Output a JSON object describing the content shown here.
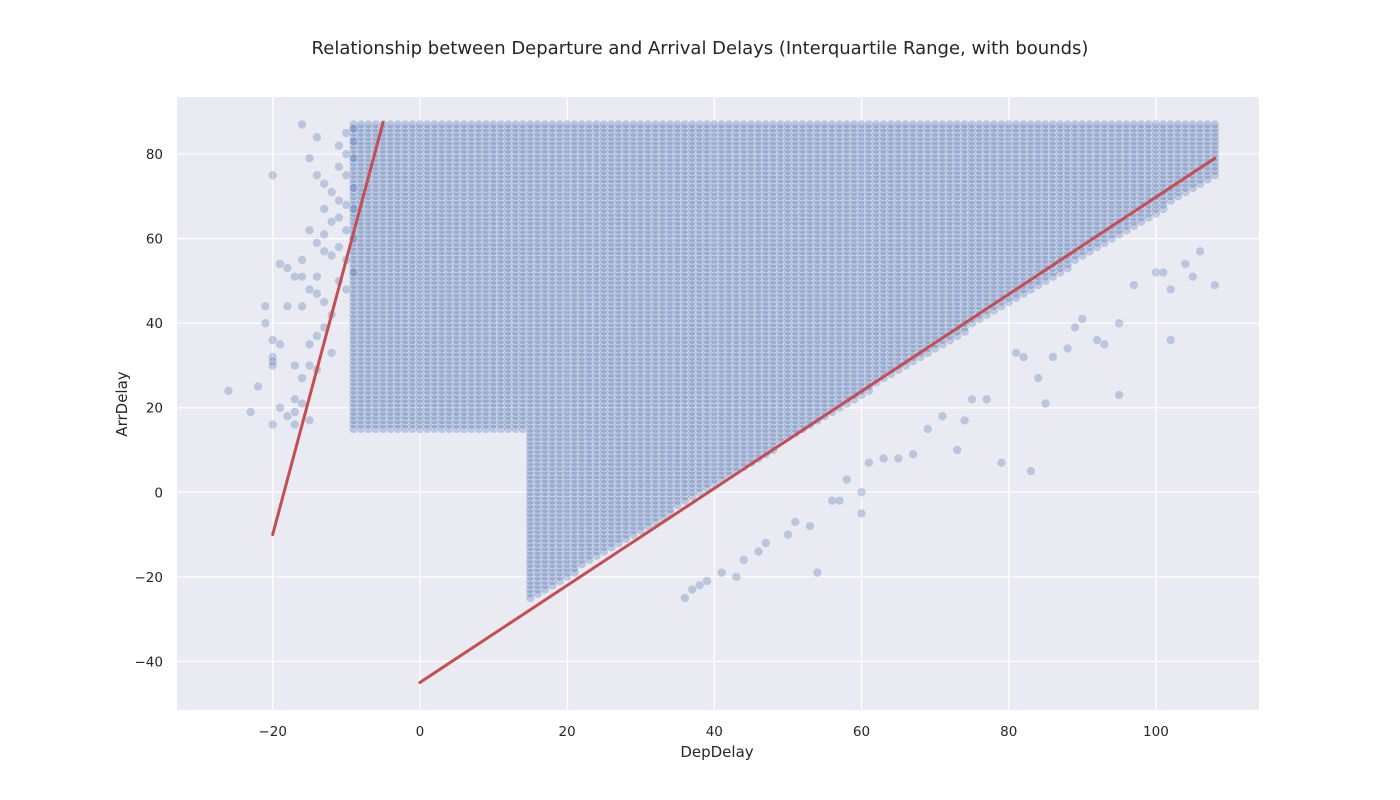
{
  "chart_data": {
    "type": "scatter",
    "title": "Relationship between Departure and Arrival Delays (Interquartile Range, with bounds)",
    "xlabel": "DepDelay",
    "ylabel": "ArrDelay",
    "xlim": [
      -33,
      114
    ],
    "ylim": [
      -51.5,
      93.5
    ],
    "x_ticks": [
      -20,
      0,
      20,
      40,
      60,
      80,
      100
    ],
    "y_ticks": [
      -40,
      -20,
      0,
      20,
      40,
      60,
      80
    ],
    "x_tick_labels": [
      "−20",
      "0",
      "20",
      "40",
      "60",
      "80",
      "100"
    ],
    "y_tick_labels": [
      "−40",
      "−20",
      "0",
      "20",
      "40",
      "60",
      "80"
    ],
    "grid": true,
    "legend": "none",
    "style": {
      "background": "#EAEAF2",
      "grid_color": "#FFFFFF",
      "point_color": "#4C72B0",
      "point_alpha": 0.3,
      "line_color": "#C44E52"
    },
    "series": [
      {
        "type": "scatter",
        "points": [
          [
            -26,
            24
          ],
          [
            -23,
            19
          ],
          [
            -22,
            25
          ],
          [
            -21,
            44
          ],
          [
            -21,
            40
          ],
          [
            -20,
            75
          ],
          [
            -20,
            36
          ],
          [
            -20,
            32
          ],
          [
            -20,
            31
          ],
          [
            -20,
            30
          ],
          [
            -20,
            16
          ],
          [
            -19,
            54
          ],
          [
            -19,
            35
          ],
          [
            -19,
            20
          ],
          [
            -18,
            53
          ],
          [
            -18,
            44
          ],
          [
            -18,
            18
          ],
          [
            -17,
            51
          ],
          [
            -17,
            30
          ],
          [
            -17,
            22
          ],
          [
            -17,
            19
          ],
          [
            -17,
            16
          ],
          [
            -16,
            87
          ],
          [
            -16,
            55
          ],
          [
            -16,
            51
          ],
          [
            -16,
            44
          ],
          [
            -16,
            27
          ],
          [
            -16,
            21
          ],
          [
            -15,
            79
          ],
          [
            -15,
            62
          ],
          [
            -15,
            48
          ],
          [
            -15,
            35
          ],
          [
            -15,
            30
          ],
          [
            -15,
            17
          ],
          [
            -14,
            84
          ],
          [
            -14,
            75
          ],
          [
            -14,
            59
          ],
          [
            -14,
            51
          ],
          [
            -14,
            47
          ],
          [
            -14,
            37
          ],
          [
            -14,
            29
          ],
          [
            -13,
            73
          ],
          [
            -13,
            67
          ],
          [
            -13,
            61
          ],
          [
            -13,
            57
          ],
          [
            -13,
            45
          ],
          [
            -13,
            39
          ],
          [
            -12,
            71
          ],
          [
            -12,
            64
          ],
          [
            -12,
            56
          ],
          [
            -12,
            42
          ],
          [
            -12,
            33
          ],
          [
            -11,
            82
          ],
          [
            -11,
            77
          ],
          [
            -11,
            69
          ],
          [
            -11,
            65
          ],
          [
            -11,
            58
          ],
          [
            -11,
            50
          ],
          [
            -10,
            85
          ],
          [
            -10,
            80
          ],
          [
            -10,
            75
          ],
          [
            -10,
            68
          ],
          [
            -10,
            62
          ],
          [
            -10,
            55
          ],
          [
            -10,
            48
          ],
          [
            -9,
            86
          ],
          [
            -9,
            83
          ],
          [
            -9,
            79
          ],
          [
            -9,
            72
          ],
          [
            -9,
            67
          ],
          [
            -9,
            60
          ],
          [
            -9,
            52
          ],
          [
            36,
            -25
          ],
          [
            37,
            -23
          ],
          [
            38,
            -22
          ],
          [
            39,
            -21
          ],
          [
            41,
            -19
          ],
          [
            43,
            -20
          ],
          [
            44,
            -16
          ],
          [
            46,
            -14
          ],
          [
            47,
            -12
          ],
          [
            50,
            -10
          ],
          [
            51,
            -7
          ],
          [
            53,
            -8
          ],
          [
            54,
            -19
          ],
          [
            56,
            -2
          ],
          [
            57,
            -2
          ],
          [
            58,
            3
          ],
          [
            60,
            0
          ],
          [
            60,
            -5
          ],
          [
            61,
            7
          ],
          [
            63,
            8
          ],
          [
            65,
            8
          ],
          [
            67,
            9
          ],
          [
            69,
            15
          ],
          [
            71,
            18
          ],
          [
            73,
            10
          ],
          [
            74,
            17
          ],
          [
            75,
            22
          ],
          [
            77,
            22
          ],
          [
            79,
            7
          ],
          [
            81,
            33
          ],
          [
            82,
            32
          ],
          [
            83,
            5
          ],
          [
            84,
            27
          ],
          [
            85,
            21
          ],
          [
            86,
            32
          ],
          [
            88,
            34
          ],
          [
            89,
            39
          ],
          [
            90,
            41
          ],
          [
            92,
            36
          ],
          [
            93,
            35
          ],
          [
            95,
            23
          ],
          [
            95,
            40
          ],
          [
            97,
            49
          ],
          [
            100,
            52
          ],
          [
            101,
            52
          ],
          [
            102,
            36
          ],
          [
            102,
            48
          ],
          [
            104,
            54
          ],
          [
            105,
            51
          ],
          [
            106,
            57
          ],
          [
            108,
            49
          ]
        ],
        "dense_regions": [
          {
            "x_from": -9,
            "x_to": 14,
            "y_from": 15,
            "y_to": 87,
            "step": 1
          },
          {
            "x_from": 15,
            "x_to": 108,
            "lower": {
              "x": [
                15,
                108
              ],
              "y": [
                -25,
                75
              ]
            },
            "y_to": 87,
            "step": 1
          }
        ]
      },
      {
        "type": "line",
        "points": [
          [
            -20,
            -10
          ],
          [
            -5,
            87.5
          ]
        ]
      },
      {
        "type": "line",
        "points": [
          [
            0,
            -45
          ],
          [
            108,
            79
          ]
        ]
      }
    ]
  }
}
